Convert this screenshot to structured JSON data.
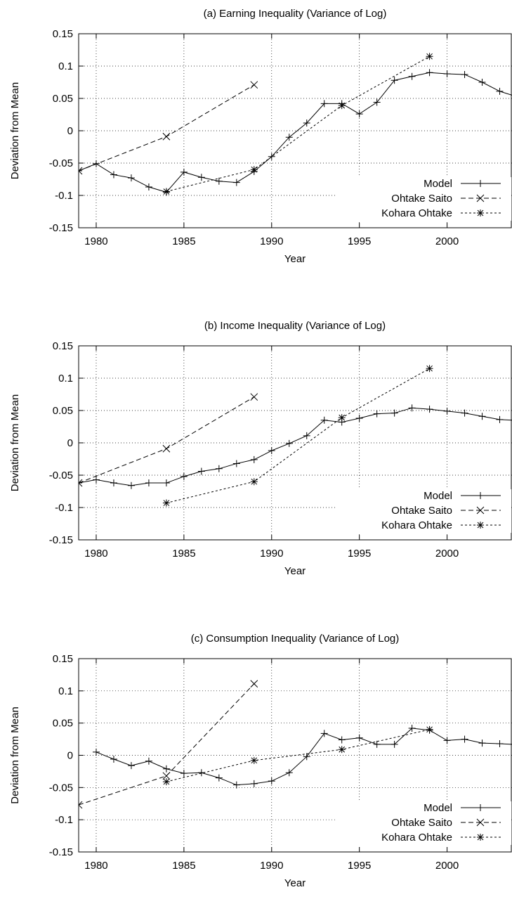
{
  "chart_data": [
    {
      "type": "line",
      "title": "(a) Earning Inequality (Variance of Log)",
      "xlabel": "Year",
      "ylabel": "Deviation from Mean",
      "xlim": [
        1979,
        2003.7
      ],
      "ylim": [
        -0.15,
        0.15
      ],
      "xticks": [
        "1980",
        "1985",
        "1990",
        "1995",
        "2000"
      ],
      "yticks": [
        "0.15",
        "0.1",
        "0.05",
        "0",
        "-0.05",
        "-0.1",
        "-0.15"
      ],
      "grid": true,
      "legend_position": "bottom-right",
      "series": [
        {
          "name": "Model",
          "style": "solid",
          "x": [
            1979,
            1980,
            1981,
            1982,
            1983,
            1984,
            1985,
            1986,
            1987,
            1988,
            1989,
            1990,
            1991,
            1992,
            1993,
            1994,
            1995,
            1996,
            1997,
            1998,
            1999,
            2000,
            2001,
            2002,
            2003,
            2003.7
          ],
          "y": [
            -0.062,
            -0.051,
            -0.068,
            -0.073,
            -0.087,
            -0.095,
            -0.064,
            -0.072,
            -0.078,
            -0.08,
            -0.063,
            -0.04,
            -0.01,
            0.012,
            0.042,
            0.042,
            0.026,
            0.044,
            0.078,
            0.084,
            0.09,
            0.088,
            0.087,
            0.075,
            0.061,
            0.055
          ]
        },
        {
          "name": "Ohtake  Saito",
          "style": "dashed",
          "x": [
            1979,
            1984,
            1989
          ],
          "y": [
            -0.062,
            -0.009,
            0.071
          ]
        },
        {
          "name": "Kohara  Ohtake",
          "style": "dotted",
          "x": [
            1984,
            1989,
            1994,
            1999
          ],
          "y": [
            -0.094,
            -0.06,
            0.039,
            0.115
          ]
        }
      ]
    },
    {
      "type": "line",
      "title": "(b) Income Inequality (Variance of Log)",
      "xlabel": "Year",
      "ylabel": "Deviation from Mean",
      "xlim": [
        1979,
        2003.7
      ],
      "ylim": [
        -0.15,
        0.15
      ],
      "xticks": [
        "1980",
        "1985",
        "1990",
        "1995",
        "2000"
      ],
      "yticks": [
        "0.15",
        "0.1",
        "0.05",
        "0",
        "-0.05",
        "-0.1",
        "-0.15"
      ],
      "grid": true,
      "legend_position": "bottom-right",
      "series": [
        {
          "name": "Model",
          "style": "solid",
          "x": [
            1979,
            1980,
            1981,
            1982,
            1983,
            1984,
            1985,
            1986,
            1987,
            1988,
            1989,
            1990,
            1991,
            1992,
            1993,
            1994,
            1995,
            1996,
            1997,
            1998,
            1999,
            2000,
            2001,
            2002,
            2003,
            2003.7
          ],
          "y": [
            -0.062,
            -0.057,
            -0.062,
            -0.066,
            -0.062,
            -0.062,
            -0.052,
            -0.044,
            -0.04,
            -0.032,
            -0.026,
            -0.012,
            -0.001,
            0.011,
            0.035,
            0.032,
            0.038,
            0.045,
            0.046,
            0.054,
            0.052,
            0.049,
            0.046,
            0.041,
            0.036,
            0.035
          ]
        },
        {
          "name": "Ohtake  Saito",
          "style": "dashed",
          "x": [
            1979,
            1984,
            1989
          ],
          "y": [
            -0.062,
            -0.009,
            0.071
          ]
        },
        {
          "name": "Kohara  Ohtake",
          "style": "dotted",
          "x": [
            1984,
            1989,
            1994,
            1999
          ],
          "y": [
            -0.093,
            -0.06,
            0.039,
            0.115
          ]
        }
      ]
    },
    {
      "type": "line",
      "title": "(c) Consumption Inequality (Variance of Log)",
      "xlabel": "Year",
      "ylabel": "Deviation from Mean",
      "xlim": [
        1979,
        2003.7
      ],
      "ylim": [
        -0.15,
        0.15
      ],
      "xticks": [
        "1980",
        "1985",
        "1990",
        "1995",
        "2000"
      ],
      "yticks": [
        "0.15",
        "0.1",
        "0.05",
        "0",
        "-0.05",
        "-0.1",
        "-0.15"
      ],
      "grid": true,
      "legend_position": "bottom-right",
      "series": [
        {
          "name": "Model",
          "style": "solid",
          "x": [
            1980,
            1981,
            1982,
            1983,
            1984,
            1985,
            1986,
            1987,
            1988,
            1989,
            1990,
            1991,
            1992,
            1993,
            1994,
            1995,
            1996,
            1997,
            1998,
            1999,
            2000,
            2001,
            2002,
            2003,
            2003.7
          ],
          "y": [
            0.005,
            -0.006,
            -0.016,
            -0.009,
            -0.021,
            -0.028,
            -0.027,
            -0.035,
            -0.046,
            -0.044,
            -0.04,
            -0.027,
            -0.002,
            0.034,
            0.024,
            0.027,
            0.017,
            0.017,
            0.042,
            0.039,
            0.023,
            0.025,
            0.019,
            0.018,
            0.017
          ]
        },
        {
          "name": "Ohtake  Saito",
          "style": "dashed",
          "x": [
            1979,
            1984,
            1989
          ],
          "y": [
            -0.077,
            -0.032,
            0.111
          ]
        },
        {
          "name": "Kohara  Ohtake",
          "style": "dotted",
          "x": [
            1984,
            1989,
            1994,
            1999
          ],
          "y": [
            -0.041,
            -0.008,
            0.009,
            0.04
          ]
        }
      ]
    }
  ]
}
